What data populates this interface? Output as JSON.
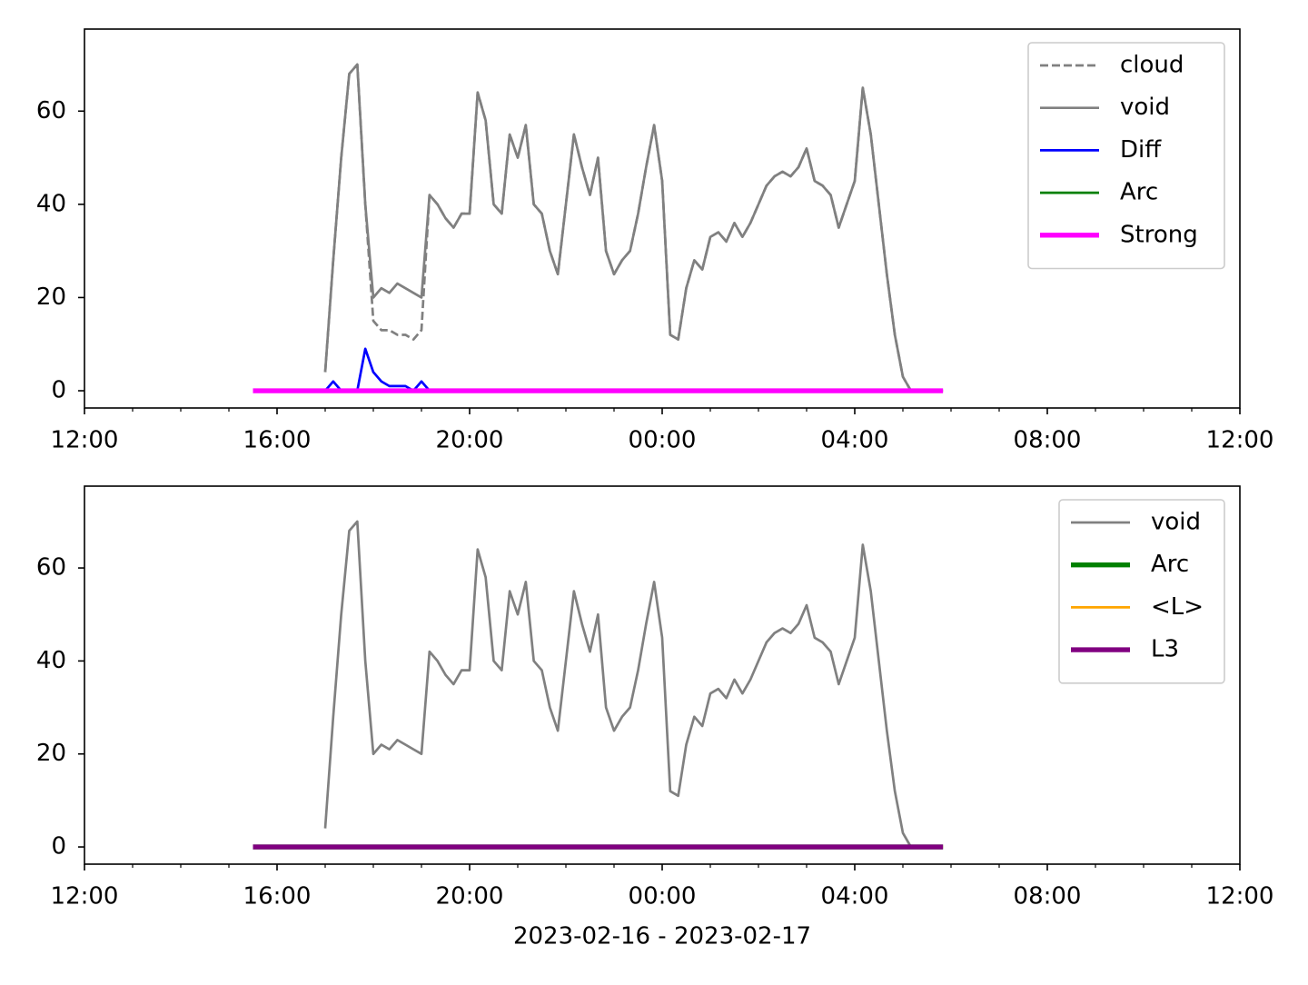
{
  "chart_data": [
    {
      "type": "line",
      "x": [
        15.5,
        15.667,
        15.833,
        16,
        16.167,
        16.333,
        16.5,
        16.667,
        16.833,
        17,
        17.167,
        17.333,
        17.5,
        17.667,
        17.833,
        18,
        18.167,
        18.333,
        18.5,
        18.667,
        18.833,
        19,
        19.167,
        19.333,
        19.5,
        19.667,
        19.833,
        20,
        20.167,
        20.333,
        20.5,
        20.667,
        20.833,
        21,
        21.167,
        21.333,
        21.5,
        21.667,
        21.833,
        22,
        22.167,
        22.333,
        22.5,
        22.667,
        22.833,
        23,
        23.167,
        23.333,
        23.5,
        23.667,
        23.833,
        24,
        24.167,
        24.333,
        24.5,
        24.667,
        24.833,
        25,
        25.167,
        25.333,
        25.5,
        25.667,
        25.833,
        26,
        26.167,
        26.333,
        26.5,
        26.667,
        26.833,
        27,
        27.167,
        27.333,
        27.5,
        27.667,
        27.833,
        28,
        28.167,
        28.333,
        28.5,
        28.667,
        28.833,
        29,
        29.167,
        29.333,
        29.5,
        29.667,
        29.833
      ],
      "series": [
        {
          "name": "cloud",
          "color": "#808080",
          "linewidth": 1,
          "dash": true,
          "values": [
            null,
            null,
            null,
            null,
            null,
            null,
            null,
            null,
            null,
            4,
            28,
            50,
            68,
            70,
            40,
            15,
            13,
            13,
            12,
            12,
            11,
            13,
            42,
            40,
            37,
            35,
            38,
            38,
            64,
            58,
            40,
            38,
            55,
            50,
            57,
            40,
            38,
            30,
            25,
            40,
            55,
            48,
            42,
            50,
            30,
            25,
            28,
            30,
            38,
            48,
            57,
            45,
            12,
            11,
            22,
            28,
            26,
            33,
            34,
            32,
            36,
            33,
            36,
            40,
            44,
            46,
            47,
            46,
            48,
            52,
            45,
            44,
            42,
            35,
            40,
            45,
            65,
            55,
            40,
            25,
            12,
            3,
            0,
            null,
            null,
            null,
            null
          ]
        },
        {
          "name": "void",
          "color": "#808080",
          "linewidth": 1,
          "values": [
            null,
            null,
            null,
            null,
            null,
            null,
            null,
            null,
            null,
            4,
            28,
            50,
            68,
            70,
            40,
            20,
            22,
            21,
            23,
            22,
            21,
            20,
            42,
            40,
            37,
            35,
            38,
            38,
            64,
            58,
            40,
            38,
            55,
            50,
            57,
            40,
            38,
            30,
            25,
            40,
            55,
            48,
            42,
            50,
            30,
            25,
            28,
            30,
            38,
            48,
            57,
            45,
            12,
            11,
            22,
            28,
            26,
            33,
            34,
            32,
            36,
            33,
            36,
            40,
            44,
            46,
            47,
            46,
            48,
            52,
            45,
            44,
            42,
            35,
            40,
            45,
            65,
            55,
            40,
            25,
            12,
            3,
            0,
            null,
            null,
            null,
            null
          ]
        },
        {
          "name": "Diff",
          "color": "#0000ff",
          "linewidth": 1,
          "x": [
            17,
            17.167,
            17.333,
            17.5,
            17.667,
            17.833,
            18,
            18.167,
            18.333,
            18.5,
            18.667,
            18.833,
            19,
            19.167
          ],
          "values": [
            0,
            2,
            0,
            0,
            0,
            9,
            4,
            2,
            1,
            1,
            1,
            0,
            2,
            0
          ]
        },
        {
          "name": "Arc",
          "color": "#008000",
          "linewidth": 1,
          "x": [
            15.5,
            29.833
          ],
          "values": [
            0,
            0
          ]
        },
        {
          "name": "Strong",
          "color": "#ff00ff",
          "linewidth": 2,
          "x": [
            15.5,
            29.833
          ],
          "values": [
            0,
            0
          ]
        }
      ],
      "xlim": [
        12,
        36
      ],
      "xticks": [
        {
          "value": 12,
          "label": "12:00"
        },
        {
          "value": 16,
          "label": "16:00"
        },
        {
          "value": 20,
          "label": "20:00"
        },
        {
          "value": 24,
          "label": "00:00"
        },
        {
          "value": 28,
          "label": "04:00"
        },
        {
          "value": 32,
          "label": "08:00"
        },
        {
          "value": 36,
          "label": "12:00"
        }
      ],
      "xminorticks": [
        13,
        14,
        15,
        17,
        18,
        19,
        21,
        22,
        23,
        25,
        26,
        27,
        29,
        30,
        31,
        33,
        34,
        35
      ],
      "ylim": [
        -3.7,
        77.6
      ],
      "yticks": [
        0,
        20,
        40,
        60
      ],
      "legend": "upper right"
    },
    {
      "type": "line",
      "x": [
        15.5,
        15.667,
        15.833,
        16,
        16.167,
        16.333,
        16.5,
        16.667,
        16.833,
        17,
        17.167,
        17.333,
        17.5,
        17.667,
        17.833,
        18,
        18.167,
        18.333,
        18.5,
        18.667,
        18.833,
        19,
        19.167,
        19.333,
        19.5,
        19.667,
        19.833,
        20,
        20.167,
        20.333,
        20.5,
        20.667,
        20.833,
        21,
        21.167,
        21.333,
        21.5,
        21.667,
        21.833,
        22,
        22.167,
        22.333,
        22.5,
        22.667,
        22.833,
        23,
        23.167,
        23.333,
        23.5,
        23.667,
        23.833,
        24,
        24.167,
        24.333,
        24.5,
        24.667,
        24.833,
        25,
        25.167,
        25.333,
        25.5,
        25.667,
        25.833,
        26,
        26.167,
        26.333,
        26.5,
        26.667,
        26.833,
        27,
        27.167,
        27.333,
        27.5,
        27.667,
        27.833,
        28,
        28.167,
        28.333,
        28.5,
        28.667,
        28.833,
        29,
        29.167,
        29.333,
        29.5,
        29.667,
        29.833
      ],
      "series": [
        {
          "name": "void",
          "color": "#808080",
          "linewidth": 1,
          "values": [
            null,
            null,
            null,
            null,
            null,
            null,
            null,
            null,
            null,
            4,
            28,
            50,
            68,
            70,
            40,
            20,
            22,
            21,
            23,
            22,
            21,
            20,
            42,
            40,
            37,
            35,
            38,
            38,
            64,
            58,
            40,
            38,
            55,
            50,
            57,
            40,
            38,
            30,
            25,
            40,
            55,
            48,
            42,
            50,
            30,
            25,
            28,
            30,
            38,
            48,
            57,
            45,
            12,
            11,
            22,
            28,
            26,
            33,
            34,
            32,
            36,
            33,
            36,
            40,
            44,
            46,
            47,
            46,
            48,
            52,
            45,
            44,
            42,
            35,
            40,
            45,
            65,
            55,
            40,
            25,
            12,
            3,
            0,
            null,
            null,
            null,
            null
          ]
        },
        {
          "name": "Arc",
          "color": "#008000",
          "linewidth": 2,
          "x": [
            15.5,
            29.833
          ],
          "values": [
            0,
            0
          ]
        },
        {
          "name": "<L>",
          "color": "#ffa500",
          "linewidth": 1,
          "x": [
            15.5,
            29.833
          ],
          "values": [
            0,
            0
          ]
        },
        {
          "name": "L3",
          "color": "#800080",
          "linewidth": 2,
          "x": [
            15.5,
            29.833
          ],
          "values": [
            0,
            0
          ]
        }
      ],
      "xlim": [
        12,
        36
      ],
      "xticks": [
        {
          "value": 12,
          "label": "12:00"
        },
        {
          "value": 16,
          "label": "16:00"
        },
        {
          "value": 20,
          "label": "20:00"
        },
        {
          "value": 24,
          "label": "00:00"
        },
        {
          "value": 28,
          "label": "04:00"
        },
        {
          "value": 32,
          "label": "08:00"
        },
        {
          "value": 36,
          "label": "12:00"
        }
      ],
      "xminorticks": [
        13,
        14,
        15,
        17,
        18,
        19,
        21,
        22,
        23,
        25,
        26,
        27,
        29,
        30,
        31,
        33,
        34,
        35
      ],
      "ylim": [
        -3.7,
        77.6
      ],
      "yticks": [
        0,
        20,
        40,
        60
      ],
      "xlabel": "2023-02-16 - 2023-02-17",
      "legend": "upper right"
    }
  ]
}
